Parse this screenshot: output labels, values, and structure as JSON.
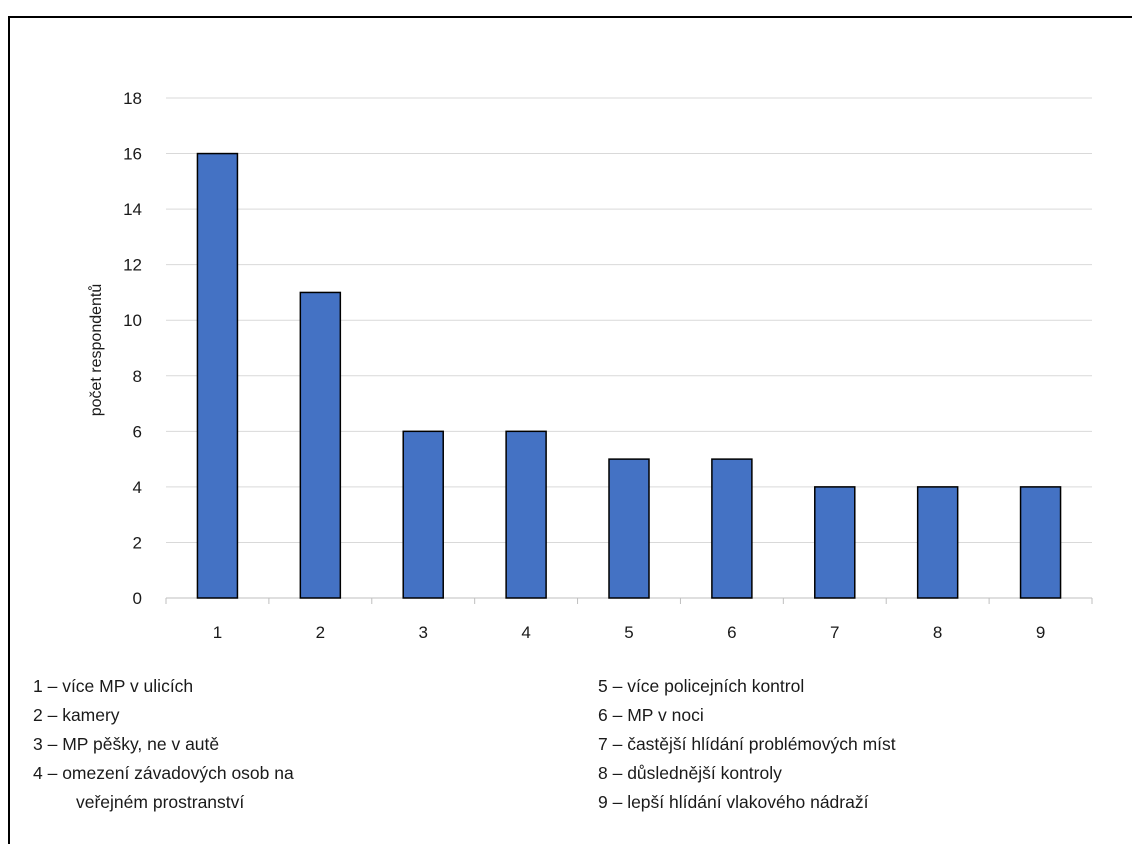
{
  "chart_data": {
    "type": "bar",
    "categories": [
      "1",
      "2",
      "3",
      "4",
      "5",
      "6",
      "7",
      "8",
      "9"
    ],
    "values": [
      16,
      11,
      6,
      6,
      5,
      5,
      4,
      4,
      4
    ],
    "ylabel": "počet respondentů",
    "ylim": [
      0,
      18
    ],
    "yticks": [
      0,
      2,
      4,
      6,
      8,
      10,
      12,
      14,
      16,
      18
    ],
    "grid": true,
    "colors": {
      "bar": "#4472C4",
      "bar_border": "#000000",
      "grid": "#d9d9d9"
    }
  },
  "legend": {
    "left": [
      {
        "text": "1 – více MP v ulicích"
      },
      {
        "text": "2 – kamery"
      },
      {
        "text": "3 – MP pěšky, ne v autě"
      },
      {
        "text": "4 – omezení závadových osob na",
        "cont": "veřejném prostranství"
      }
    ],
    "right": [
      {
        "text": "5 – více policejních kontrol"
      },
      {
        "text": "6 – MP v noci"
      },
      {
        "text": "7 – častější hlídání problémových míst"
      },
      {
        "text": "8 – důslednější kontroly"
      },
      {
        "text": "9 – lepší hlídání vlakového nádraží"
      }
    ]
  }
}
